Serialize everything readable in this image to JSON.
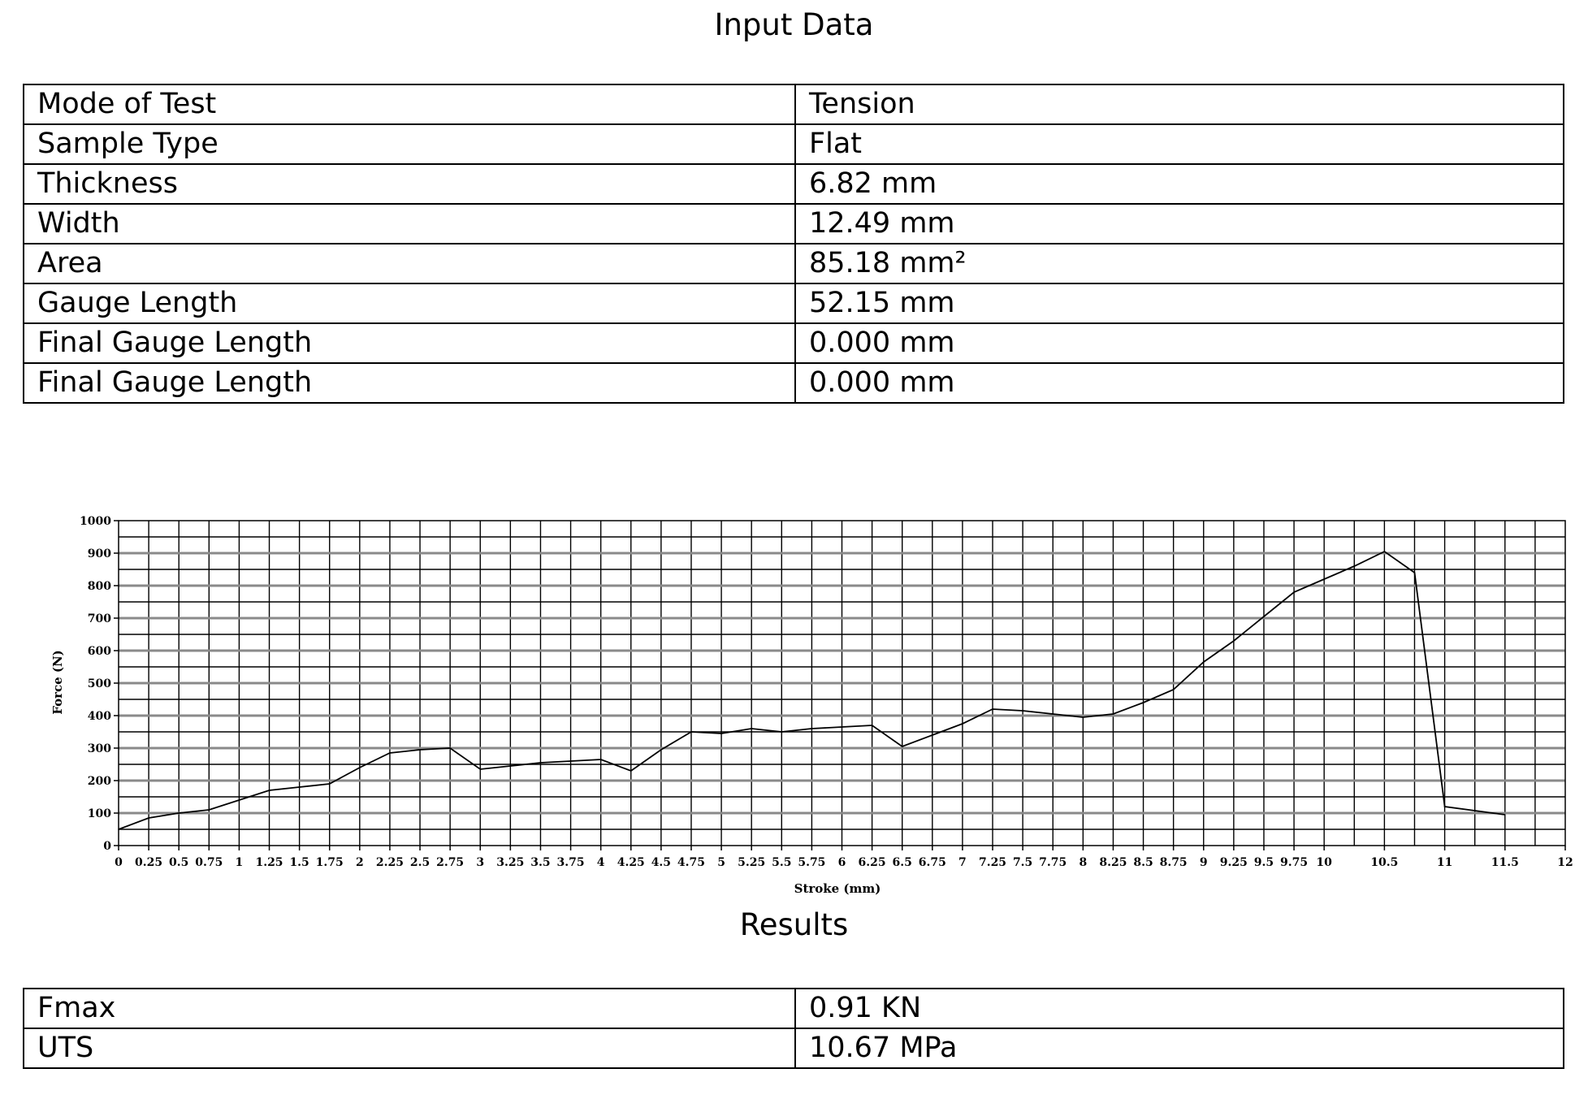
{
  "input_title": "Input Data",
  "input_rows": [
    {
      "label": "Mode of Test",
      "value": "Tension"
    },
    {
      "label": "Sample Type",
      "value": "Flat"
    },
    {
      "label": "Thickness",
      "value": "6.82 mm"
    },
    {
      "label": "Width",
      "value": "12.49 mm"
    },
    {
      "label": "Area",
      "value": "85.18 mm²"
    },
    {
      "label": "Gauge Length",
      "value": "52.15 mm"
    },
    {
      "label": "Final Gauge Length",
      "value": "0.000 mm"
    },
    {
      "label": "Final Gauge Length",
      "value": "0.000 mm"
    }
  ],
  "chart_data": {
    "type": "line",
    "xlabel": "Stroke (mm)",
    "ylabel": "Force (N)",
    "xlim": [
      0,
      12
    ],
    "ylim": [
      0,
      1000
    ],
    "grid": true,
    "x_ticks": [
      "0",
      "0.25",
      "0.5",
      "0.75",
      "1",
      "1.25",
      "1.5",
      "1.75",
      "2",
      "2.25",
      "2.5",
      "2.75",
      "3",
      "3.25",
      "3.5",
      "3.75",
      "4",
      "4.25",
      "4.5",
      "4.75",
      "5",
      "5.25",
      "5.5",
      "5.75",
      "6",
      "6.25",
      "6.5",
      "6.75",
      "7",
      "7.25",
      "7.5",
      "7.75",
      "8",
      "8.25",
      "8.5",
      "8.75",
      "9",
      "9.25",
      "9.5",
      "9.75",
      "10",
      "10.5",
      "11",
      "11.5",
      "12"
    ],
    "y_ticks": [
      "0",
      "100",
      "200",
      "300",
      "400",
      "500",
      "600",
      "700",
      "800",
      "900",
      "1000"
    ],
    "series": [
      {
        "x": [
          0,
          0.25,
          0.5,
          0.75,
          1,
          1.25,
          1.5,
          1.75,
          2,
          2.25,
          2.5,
          2.75,
          3,
          3.25,
          3.5,
          3.75,
          4,
          4.25,
          4.5,
          4.75,
          5,
          5.25,
          5.5,
          5.75,
          6,
          6.25,
          6.5,
          6.75,
          7,
          7.25,
          7.5,
          7.75,
          8,
          8.25,
          8.5,
          8.75,
          9,
          9.25,
          9.5,
          9.75,
          10,
          10.25,
          10.5,
          10.75,
          11,
          11.5
        ],
        "y": [
          50,
          85,
          100,
          110,
          140,
          170,
          180,
          190,
          240,
          285,
          295,
          300,
          235,
          245,
          255,
          260,
          265,
          230,
          295,
          350,
          345,
          360,
          350,
          360,
          365,
          370,
          305,
          340,
          375,
          420,
          415,
          405,
          395,
          405,
          440,
          480,
          565,
          630,
          705,
          780,
          820,
          860,
          905,
          840,
          120,
          95
        ]
      }
    ]
  },
  "results_title": "Results",
  "results_rows": [
    {
      "label": "Fmax",
      "value": "0.91 KN"
    },
    {
      "label": "UTS",
      "value": "10.67 MPa"
    }
  ]
}
